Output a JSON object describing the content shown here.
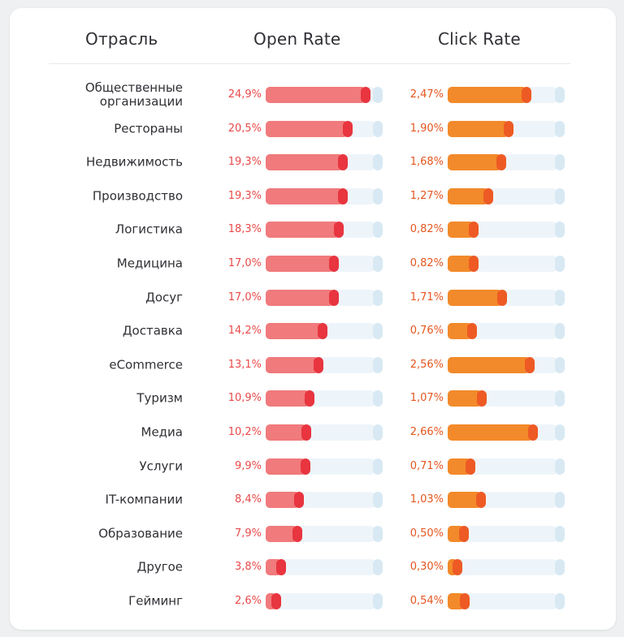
{
  "chart_data": {
    "type": "bar",
    "headers": {
      "category": "Отрасль",
      "open_rate": "Open Rate",
      "click_rate": "Click Rate"
    },
    "categories": [
      "Общественные организации",
      "Рестораны",
      "Недвижимость",
      "Производство",
      "Логистика",
      "Медицина",
      "Досуг",
      "Доставка",
      "eCommerce",
      "Туризм",
      "Медиа",
      "Услуги",
      "IT-компании",
      "Образование",
      "Другое",
      "Гейминг"
    ],
    "series": [
      {
        "name": "Open Rate",
        "values": [
          24.9,
          20.5,
          19.3,
          19.3,
          18.3,
          17.0,
          17.0,
          14.2,
          13.1,
          10.9,
          10.2,
          9.9,
          8.4,
          7.9,
          3.8,
          2.6
        ],
        "labels": [
          "24,9%",
          "20,5%",
          "19,3%",
          "19,3%",
          "18,3%",
          "17,0%",
          "17,0%",
          "14,2%",
          "13,1%",
          "10,9%",
          "10,2%",
          "9,9%",
          "8,4%",
          "7,9%",
          "3,8%",
          "2,6%"
        ],
        "max": 28
      },
      {
        "name": "Click Rate",
        "values": [
          2.47,
          1.9,
          1.68,
          1.27,
          0.82,
          0.82,
          1.71,
          0.76,
          2.56,
          1.07,
          2.66,
          0.71,
          1.03,
          0.5,
          0.3,
          0.54
        ],
        "labels": [
          "2,47%",
          "1,90%",
          "1,68%",
          "1,27%",
          "0,82%",
          "0,82%",
          "1,71%",
          "0,76%",
          "2,56%",
          "1,07%",
          "2,66%",
          "0,71%",
          "1,03%",
          "0,50%",
          "0,30%",
          "0,54%"
        ],
        "max": 3.5
      }
    ],
    "colors": {
      "open_bar": "#f07a7c",
      "open_cap": "#e8353f",
      "click_bar": "#f28a2b",
      "click_cap": "#ee5a24",
      "track": "#eef5fa"
    }
  }
}
